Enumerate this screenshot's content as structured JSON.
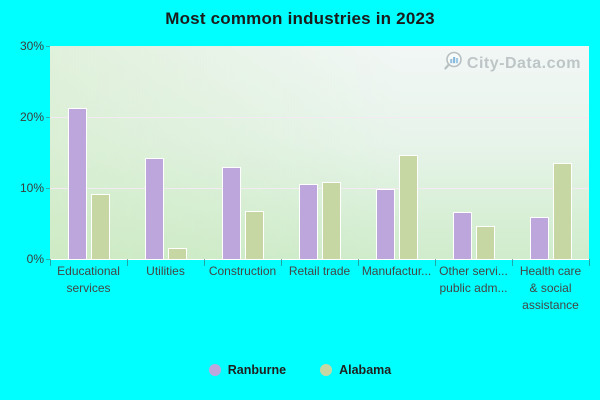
{
  "watermark": {
    "text": "City-Data.com"
  },
  "colors": {
    "page_background": "#00ffff",
    "ranburne": "#bca6dc",
    "alabama": "#c6d7a3",
    "gridline": "#f4e9f3",
    "title_text": "#1b1b1b",
    "axis_text": "#454545",
    "watermark_text": "#b1b9bc"
  },
  "chart_data": {
    "type": "bar",
    "title": "Most common industries in 2023",
    "xlabel": "",
    "ylabel": "",
    "categories": [
      {
        "lines": [
          "Educational",
          "services"
        ]
      },
      {
        "lines": [
          "Utilities"
        ]
      },
      {
        "lines": [
          "Construction"
        ]
      },
      {
        "lines": [
          "Retail trade"
        ]
      },
      {
        "lines": [
          "Manufactur..."
        ]
      },
      {
        "lines": [
          "Other servi...",
          "public adm..."
        ]
      },
      {
        "lines": [
          "Health care",
          "& social",
          "assistance"
        ]
      }
    ],
    "series": [
      {
        "name": "Ranburne",
        "color": "#bca6dc",
        "values": [
          21.3,
          14.2,
          13.0,
          10.6,
          9.9,
          6.6,
          5.9
        ]
      },
      {
        "name": "Alabama",
        "color": "#c6d7a3",
        "values": [
          9.2,
          1.5,
          6.8,
          10.9,
          14.6,
          4.6,
          13.5
        ]
      }
    ],
    "ylim": [
      0,
      30
    ],
    "yticks": [
      {
        "value": 0,
        "label": "0%"
      },
      {
        "value": 10,
        "label": "10%"
      },
      {
        "value": 20,
        "label": "20%"
      },
      {
        "value": 30,
        "label": "30%"
      }
    ],
    "grid": true,
    "legend_position": "bottom"
  }
}
